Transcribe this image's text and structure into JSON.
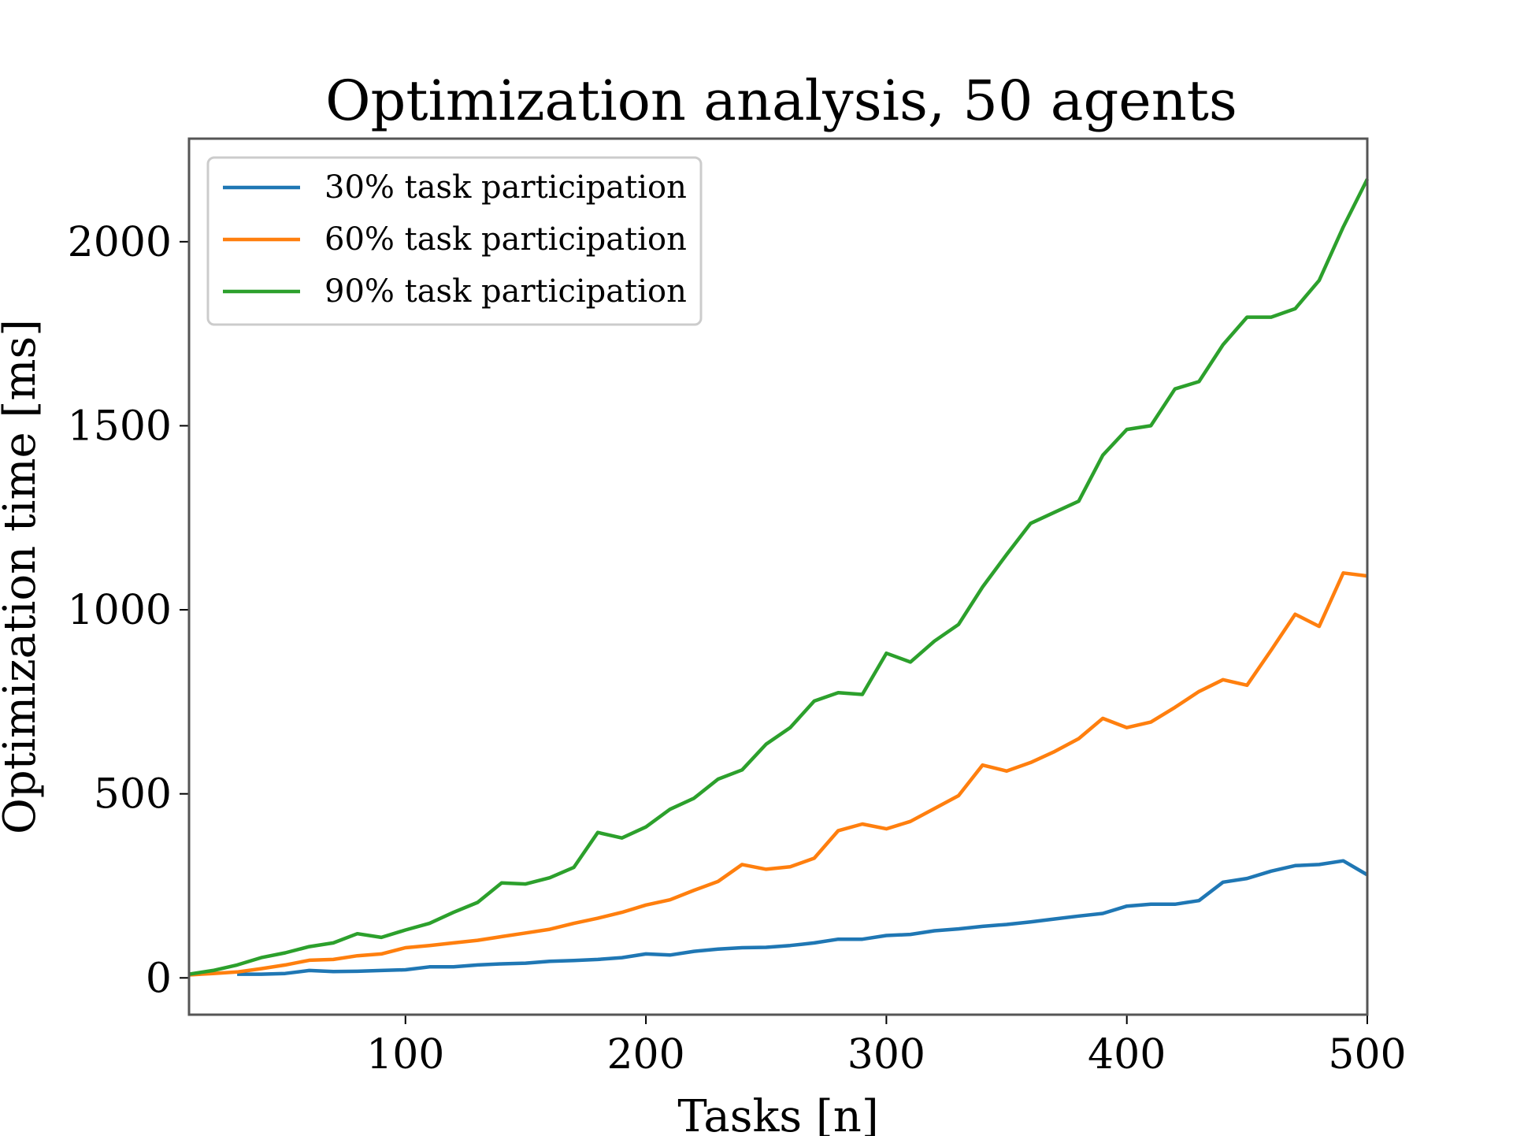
{
  "chart_data": {
    "type": "line",
    "title": "Optimization analysis, 50 agents",
    "xlabel": "Tasks [n]",
    "ylabel": "Optimization time [ms]",
    "xlim": [
      10,
      500
    ],
    "ylim": [
      -100,
      2280
    ],
    "xticks": [
      100,
      200,
      300,
      400,
      500
    ],
    "yticks": [
      0,
      500,
      1000,
      1500,
      2000
    ],
    "grid": false,
    "legend_position": "top-left",
    "x": [
      10,
      20,
      30,
      40,
      50,
      60,
      70,
      80,
      90,
      100,
      110,
      120,
      130,
      140,
      150,
      160,
      170,
      180,
      190,
      200,
      210,
      220,
      230,
      240,
      250,
      260,
      270,
      280,
      290,
      300,
      310,
      320,
      330,
      340,
      350,
      360,
      370,
      380,
      390,
      400,
      410,
      420,
      430,
      440,
      450,
      460,
      470,
      480,
      490,
      500
    ],
    "series": [
      {
        "name": "30% task participation",
        "color": "#1f77b4",
        "values": [
          null,
          null,
          10,
          10,
          12,
          20,
          17,
          18,
          20,
          22,
          30,
          30,
          35,
          38,
          40,
          45,
          47,
          50,
          55,
          65,
          62,
          72,
          78,
          82,
          83,
          88,
          95,
          105,
          105,
          115,
          118,
          128,
          133,
          140,
          145,
          152,
          160,
          168,
          175,
          195,
          200,
          200,
          210,
          260,
          270,
          290,
          305,
          308,
          318,
          280
        ]
      },
      {
        "name": "60% task participation",
        "color": "#ff7f0e",
        "values": [
          8,
          12,
          16,
          25,
          35,
          48,
          50,
          60,
          65,
          82,
          88,
          95,
          102,
          112,
          122,
          132,
          148,
          162,
          178,
          198,
          212,
          238,
          262,
          308,
          295,
          302,
          325,
          400,
          418,
          405,
          425,
          460,
          495,
          578,
          562,
          585,
          615,
          650,
          705,
          680,
          695,
          735,
          778,
          810,
          795,
          890,
          988,
          955,
          1100,
          1092
        ]
      },
      {
        "name": "90% task participation",
        "color": "#2ca02c",
        "values": [
          10,
          20,
          35,
          55,
          68,
          85,
          95,
          120,
          110,
          130,
          148,
          178,
          205,
          258,
          255,
          272,
          300,
          395,
          380,
          410,
          458,
          488,
          540,
          565,
          635,
          680,
          752,
          775,
          770,
          882,
          858,
          915,
          960,
          1062,
          1150,
          1235,
          1265,
          1295,
          1420,
          1490,
          1500,
          1600,
          1620,
          1720,
          1795,
          1795,
          1818,
          1895,
          2040,
          2170
        ]
      }
    ]
  }
}
